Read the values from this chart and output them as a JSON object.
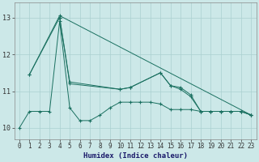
{
  "xlabel": "Humidex (Indice chaleur)",
  "xlim": [
    -0.5,
    23.5
  ],
  "ylim": [
    9.7,
    13.4
  ],
  "yticks": [
    10,
    11,
    12,
    13
  ],
  "xticks": [
    0,
    1,
    2,
    3,
    4,
    5,
    6,
    7,
    8,
    9,
    10,
    11,
    12,
    13,
    14,
    15,
    16,
    17,
    18,
    19,
    20,
    21,
    22,
    23
  ],
  "bg_color": "#cce8e8",
  "grid_color": "#aad0d0",
  "line_color": "#1a7060",
  "series": [
    {
      "x": [
        0,
        1,
        2,
        3,
        4,
        5,
        6,
        7,
        8,
        9,
        10,
        11,
        12,
        13,
        14,
        15,
        16,
        17,
        18,
        19,
        20,
        21,
        22,
        23
      ],
      "y": [
        10.0,
        10.45,
        10.45,
        10.45,
        12.9,
        10.55,
        10.2,
        10.2,
        10.35,
        10.55,
        10.7,
        10.7,
        10.7,
        10.7,
        10.65,
        10.5,
        10.5,
        10.5,
        10.45,
        10.45,
        10.45,
        10.45,
        10.45,
        10.35
      ]
    },
    {
      "x": [
        1,
        4,
        5,
        10,
        11,
        14,
        15,
        16,
        17,
        18,
        19,
        20,
        21,
        22,
        23
      ],
      "y": [
        11.45,
        13.0,
        11.2,
        11.05,
        11.1,
        11.5,
        11.15,
        11.1,
        10.9,
        10.45,
        10.45,
        10.45,
        10.45,
        10.45,
        10.35
      ]
    },
    {
      "x": [
        1,
        4,
        23
      ],
      "y": [
        11.45,
        13.05,
        10.35
      ]
    },
    {
      "x": [
        4,
        5,
        10,
        11,
        14,
        15,
        16,
        17,
        18,
        19,
        20,
        21,
        22,
        23
      ],
      "y": [
        13.0,
        11.25,
        11.05,
        11.1,
        11.5,
        11.15,
        11.05,
        10.85,
        10.45,
        10.45,
        10.45,
        10.45,
        10.45,
        10.35
      ]
    }
  ]
}
